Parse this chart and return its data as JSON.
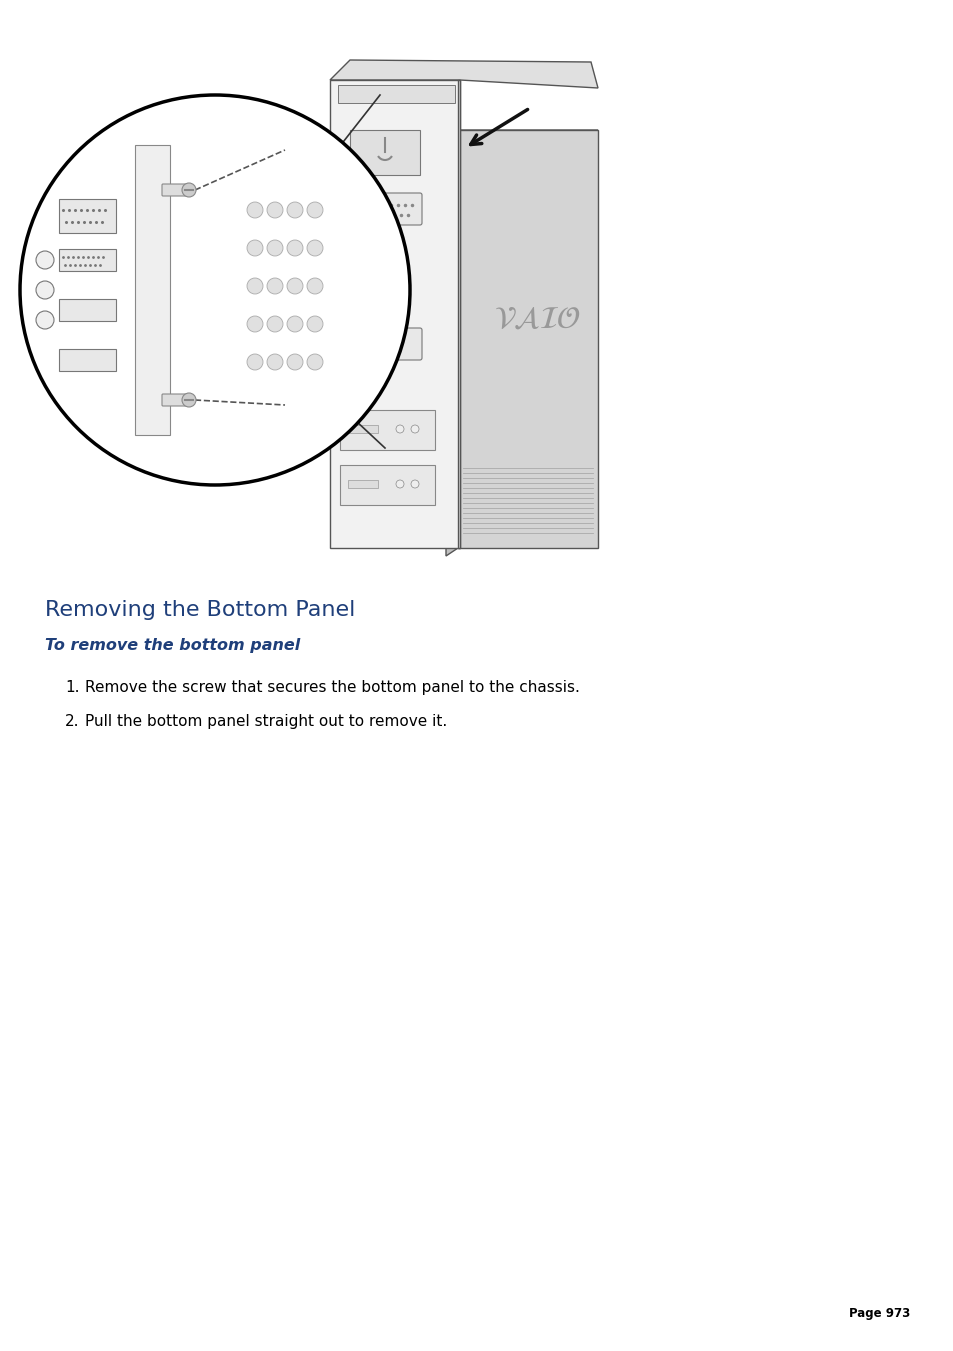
{
  "bg_color": "#ffffff",
  "page_width": 9.54,
  "page_height": 13.51,
  "title": "Removing the Bottom Panel",
  "title_color": "#1f3f7a",
  "title_fontsize": 16,
  "subtitle": "To remove the bottom panel",
  "subtitle_color": "#1f3f7a",
  "subtitle_fontsize": 11.5,
  "step1_num": "1.",
  "step1_text": "Remove the screw that secures the bottom panel to the chassis.",
  "step2_num": "2.",
  "step2_text": "Pull the bottom panel straight out to remove it.",
  "step_fontsize": 11,
  "step_color": "#000000",
  "page_footer": "Page 973",
  "footer_fontsize": 8.5,
  "footer_color": "#000000",
  "line_color": "#555555",
  "fill_light": "#e8e8e8",
  "fill_mid": "#d0d0d0",
  "fill_white": "#ffffff"
}
